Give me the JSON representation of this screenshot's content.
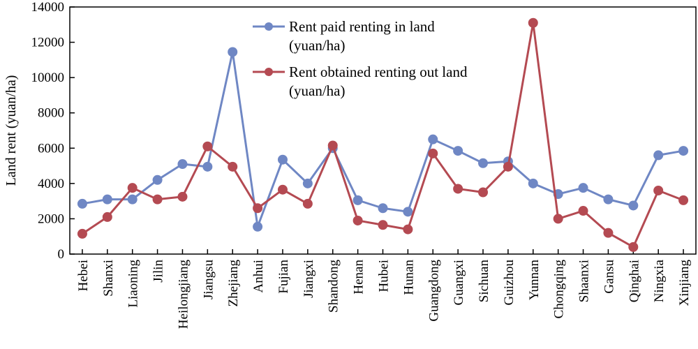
{
  "chart_data": {
    "type": "line",
    "title": "",
    "xlabel": "",
    "ylabel": "Land rent (yuan/ha)",
    "ylim": [
      0,
      14000
    ],
    "yticks": [
      0,
      2000,
      4000,
      6000,
      8000,
      10000,
      12000,
      14000
    ],
    "grid": false,
    "legend_position": "top-center",
    "categories": [
      "Hebei",
      "Shanxi",
      "Liaoning",
      "Jilin",
      "Heilongjiang",
      "Jiangsu",
      "Zhejiang",
      "Anhui",
      "Fujian",
      "Jiangxi",
      "Shandong",
      "Henan",
      "Hubei",
      "Hunan",
      "Guangdong",
      "Guangxi",
      "Sichuan",
      "Guizhou",
      "Yunnan",
      "Chongqing",
      "Shaanxi",
      "Gansu",
      "Qinghai",
      "Ningxia",
      "Xinjiang"
    ],
    "series": [
      {
        "name_lines": [
          "Rent paid renting in land",
          "(yuan/ha)"
        ],
        "color": "#6f87c4",
        "values": [
          2850,
          3100,
          3100,
          4200,
          5100,
          4950,
          11450,
          1550,
          5350,
          4000,
          6000,
          3050,
          2600,
          2400,
          6500,
          5850,
          5150,
          5250,
          4000,
          3400,
          3750,
          3100,
          2750,
          5600,
          5850
        ]
      },
      {
        "name_lines": [
          "Rent obtained renting out land",
          "(yuan/ha)"
        ],
        "color": "#b44a52",
        "values": [
          1150,
          2100,
          3750,
          3100,
          3250,
          6100,
          4950,
          2600,
          3650,
          2850,
          6150,
          1900,
          1650,
          1400,
          5700,
          3700,
          3500,
          4950,
          13100,
          2000,
          2450,
          1200,
          400,
          3600,
          3050
        ]
      }
    ]
  }
}
